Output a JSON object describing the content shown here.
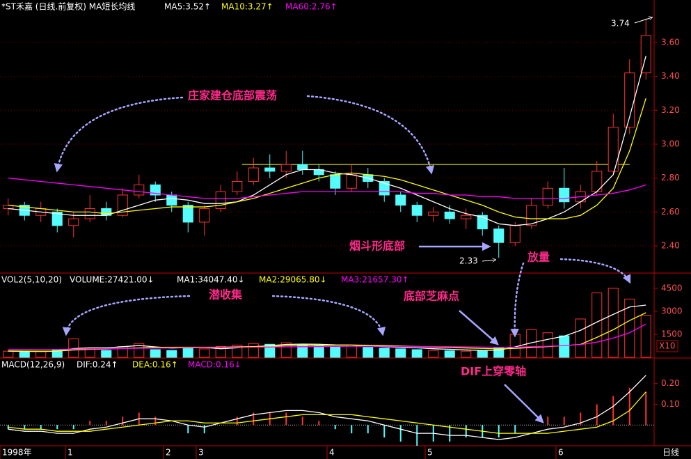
{
  "chart_data": [
    {
      "type": "candlestick",
      "title": "*ST禾嘉 (日线.前复权) MA短长均线",
      "candles": {
        "up_color": "#ff3232",
        "down_color": "#54fcfc",
        "values": [
          [
            2.62,
            2.68,
            2.58,
            2.64
          ],
          [
            2.64,
            2.66,
            2.55,
            2.58
          ],
          [
            2.58,
            2.66,
            2.54,
            2.62
          ],
          [
            2.6,
            2.62,
            2.48,
            2.52
          ],
          [
            2.52,
            2.6,
            2.45,
            2.56
          ],
          [
            2.56,
            2.7,
            2.54,
            2.62
          ],
          [
            2.62,
            2.66,
            2.55,
            2.58
          ],
          [
            2.58,
            2.74,
            2.57,
            2.7
          ],
          [
            2.7,
            2.82,
            2.68,
            2.76
          ],
          [
            2.76,
            2.78,
            2.66,
            2.7
          ],
          [
            2.7,
            2.72,
            2.6,
            2.64
          ],
          [
            2.64,
            2.66,
            2.48,
            2.54
          ],
          [
            2.54,
            2.64,
            2.46,
            2.62
          ],
          [
            2.62,
            2.76,
            2.6,
            2.72
          ],
          [
            2.72,
            2.84,
            2.7,
            2.78
          ],
          [
            2.78,
            2.92,
            2.76,
            2.86
          ],
          [
            2.86,
            2.94,
            2.8,
            2.84
          ],
          [
            2.84,
            2.96,
            2.8,
            2.88
          ],
          [
            2.88,
            2.96,
            2.82,
            2.85
          ],
          [
            2.85,
            2.88,
            2.78,
            2.82
          ],
          [
            2.82,
            2.84,
            2.7,
            2.74
          ],
          [
            2.74,
            2.88,
            2.72,
            2.82
          ],
          [
            2.82,
            2.86,
            2.74,
            2.78
          ],
          [
            2.78,
            2.8,
            2.66,
            2.7
          ],
          [
            2.7,
            2.72,
            2.6,
            2.64
          ],
          [
            2.64,
            2.66,
            2.54,
            2.58
          ],
          [
            2.58,
            2.63,
            2.54,
            2.6
          ],
          [
            2.6,
            2.64,
            2.53,
            2.56
          ],
          [
            2.56,
            2.62,
            2.5,
            2.58
          ],
          [
            2.58,
            2.6,
            2.46,
            2.5
          ],
          [
            2.5,
            2.52,
            2.33,
            2.42
          ],
          [
            2.42,
            2.54,
            2.4,
            2.52
          ],
          [
            2.52,
            2.68,
            2.5,
            2.64
          ],
          [
            2.64,
            2.78,
            2.62,
            2.74
          ],
          [
            2.74,
            2.86,
            2.62,
            2.66
          ],
          [
            2.66,
            2.76,
            2.62,
            2.72
          ],
          [
            2.72,
            2.9,
            2.7,
            2.84
          ],
          [
            2.84,
            3.18,
            2.82,
            3.1
          ],
          [
            3.1,
            3.5,
            3.06,
            3.42
          ],
          [
            3.42,
            3.74,
            3.38,
            3.64
          ]
        ]
      },
      "series": [
        {
          "name": "MA5:3.52↑",
          "color": "#ffffff",
          "values": [
            2.62,
            2.61,
            2.6,
            2.59,
            2.58,
            2.58,
            2.58,
            2.61,
            2.64,
            2.67,
            2.68,
            2.67,
            2.65,
            2.65,
            2.66,
            2.7,
            2.76,
            2.82,
            2.85,
            2.85,
            2.83,
            2.82,
            2.8,
            2.77,
            2.74,
            2.7,
            2.66,
            2.62,
            2.59,
            2.57,
            2.53,
            2.52,
            2.53,
            2.56,
            2.6,
            2.66,
            2.72,
            2.82,
            3.16,
            3.52
          ]
        },
        {
          "name": "MA10:3.27↑",
          "color": "#ffff00",
          "values": [
            2.64,
            2.63,
            2.62,
            2.61,
            2.6,
            2.6,
            2.59,
            2.6,
            2.61,
            2.62,
            2.63,
            2.63,
            2.63,
            2.64,
            2.66,
            2.68,
            2.71,
            2.74,
            2.77,
            2.8,
            2.82,
            2.83,
            2.82,
            2.81,
            2.79,
            2.76,
            2.73,
            2.7,
            2.67,
            2.64,
            2.6,
            2.57,
            2.56,
            2.56,
            2.56,
            2.58,
            2.64,
            2.74,
            2.96,
            3.27
          ]
        },
        {
          "name": "MA60:2.76↑",
          "color": "#ff00ff",
          "values": [
            2.8,
            2.79,
            2.78,
            2.77,
            2.76,
            2.75,
            2.74,
            2.73,
            2.72,
            2.71,
            2.7,
            2.69,
            2.68,
            2.68,
            2.68,
            2.69,
            2.7,
            2.71,
            2.72,
            2.72,
            2.72,
            2.72,
            2.72,
            2.72,
            2.72,
            2.71,
            2.71,
            2.7,
            2.7,
            2.69,
            2.69,
            2.68,
            2.68,
            2.68,
            2.68,
            2.69,
            2.7,
            2.71,
            2.73,
            2.76
          ]
        }
      ],
      "reference_line": 2.88,
      "reference_color": "#ffff00",
      "ylim": [
        2.24,
        3.85
      ],
      "yticks": [
        {
          "value": 2.4,
          "label": "2.40"
        },
        {
          "value": 2.6,
          "label": "2.60"
        },
        {
          "value": 2.8,
          "label": "2.80"
        },
        {
          "value": 3.0,
          "label": "3.00"
        },
        {
          "value": 3.2,
          "label": "3.20"
        },
        {
          "value": 3.4,
          "label": "3.40"
        },
        {
          "value": 3.6,
          "label": "3.60"
        }
      ],
      "grid": true,
      "low_label": 2.33,
      "high_label": 3.74,
      "annotations": [
        "庄家建仓底部震荡",
        "烟斗形底部",
        "放量"
      ]
    },
    {
      "type": "bar",
      "title": "VOL2(5,10,20)",
      "unit": "X10",
      "series": [
        {
          "name": "VOLUME:27421.00↓",
          "kind": "bar",
          "values": [
            400,
            350,
            380,
            500,
            1200,
            600,
            450,
            700,
            900,
            500,
            450,
            600,
            550,
            700,
            800,
            900,
            850,
            950,
            800,
            750,
            700,
            800,
            650,
            600,
            550,
            500,
            450,
            420,
            400,
            450,
            600,
            1500,
            1800,
            1600,
            1400,
            2500,
            4200,
            4500,
            3800,
            2742
          ]
        },
        {
          "name": "MA1:34047.40↓",
          "kind": "line",
          "color": "#ffffff",
          "values": [
            400,
            390,
            380,
            400,
            570,
            620,
            620,
            690,
            770,
            680,
            600,
            640,
            640,
            560,
            620,
            690,
            760,
            840,
            860,
            850,
            810,
            800,
            740,
            700,
            660,
            620,
            560,
            520,
            480,
            450,
            460,
            680,
            950,
            1170,
            1380,
            1760,
            2300,
            2800,
            3280,
            3405
          ]
        },
        {
          "name": "MA2:29065.80↓",
          "kind": "line",
          "color": "#ffff00",
          "values": [
            420,
            410,
            400,
            410,
            480,
            520,
            540,
            580,
            620,
            650,
            660,
            660,
            660,
            660,
            680,
            700,
            720,
            750,
            770,
            780,
            790,
            800,
            790,
            770,
            740,
            710,
            670,
            640,
            610,
            580,
            550,
            580,
            640,
            700,
            760,
            840,
            1300,
            1800,
            2400,
            2907
          ]
        },
        {
          "name": "MA3:21657.30↑",
          "kind": "line",
          "color": "#ff00ff",
          "values": [
            520,
            515,
            510,
            510,
            540,
            550,
            560,
            570,
            590,
            600,
            610,
            620,
            630,
            640,
            650,
            660,
            670,
            680,
            690,
            700,
            710,
            720,
            720,
            720,
            715,
            710,
            700,
            690,
            680,
            670,
            650,
            660,
            690,
            720,
            760,
            830,
            990,
            1250,
            1600,
            2166
          ]
        }
      ],
      "ylim": [
        0,
        5360
      ],
      "yticks": [
        1500,
        3000,
        4500
      ],
      "annotations": [
        "潜收集",
        "底部芝麻点"
      ]
    },
    {
      "type": "bar",
      "title": "MACD(12,26,9)",
      "categories": [
        "1998年",
        null,
        null,
        null,
        "1",
        null,
        null,
        null,
        null,
        null,
        "2",
        null,
        "3",
        null,
        null,
        null,
        null,
        null,
        null,
        null,
        "4",
        null,
        null,
        null,
        null,
        null,
        "5",
        null,
        null,
        null,
        null,
        null,
        null,
        null,
        "6",
        null,
        null,
        null,
        null,
        null
      ],
      "period_label": "日线",
      "series": [
        {
          "name": "DIF:0.24↑",
          "kind": "line",
          "color": "#ffffff",
          "values": [
            -0.02,
            -0.03,
            -0.03,
            -0.04,
            -0.04,
            -0.02,
            -0.01,
            0.01,
            0.03,
            0.03,
            0.02,
            0.0,
            -0.01,
            0.01,
            0.03,
            0.05,
            0.06,
            0.07,
            0.07,
            0.06,
            0.04,
            0.03,
            0.02,
            0.0,
            -0.02,
            -0.04,
            -0.04,
            -0.05,
            -0.05,
            -0.06,
            -0.07,
            -0.06,
            -0.04,
            -0.02,
            -0.01,
            0.01,
            0.04,
            0.09,
            0.16,
            0.24
          ]
        },
        {
          "name": "DEA:0.16↑",
          "kind": "line",
          "color": "#ffff00",
          "values": [
            -0.01,
            -0.02,
            -0.02,
            -0.03,
            -0.03,
            -0.03,
            -0.02,
            -0.01,
            0.0,
            0.01,
            0.02,
            0.02,
            0.01,
            0.01,
            0.01,
            0.02,
            0.03,
            0.04,
            0.05,
            0.05,
            0.05,
            0.05,
            0.04,
            0.03,
            0.02,
            0.01,
            0.0,
            -0.01,
            -0.02,
            -0.03,
            -0.04,
            -0.04,
            -0.04,
            -0.04,
            -0.03,
            -0.02,
            -0.01,
            0.02,
            0.07,
            0.16
          ]
        },
        {
          "name": "MACD:0.16↓",
          "kind": "bar",
          "color": "#ff00ff",
          "values": [
            -0.02,
            -0.02,
            -0.02,
            -0.02,
            -0.02,
            0.02,
            0.02,
            0.04,
            0.06,
            0.04,
            0,
            -0.04,
            -0.04,
            0,
            0.04,
            0.06,
            0.06,
            0.06,
            0.04,
            0.02,
            -0.02,
            -0.04,
            -0.04,
            -0.06,
            -0.08,
            -0.1,
            -0.08,
            -0.08,
            -0.06,
            -0.06,
            -0.06,
            -0.04,
            0,
            0.04,
            0.04,
            0.06,
            0.1,
            0.14,
            0.18,
            0.16
          ]
        }
      ],
      "ylim": [
        -0.1,
        0.32
      ],
      "yticks": [
        {
          "value": 0.1,
          "label": "0.10"
        },
        {
          "value": 0.2,
          "label": "0.20"
        }
      ],
      "annotations": [
        "DIF上穿零轴"
      ]
    }
  ]
}
